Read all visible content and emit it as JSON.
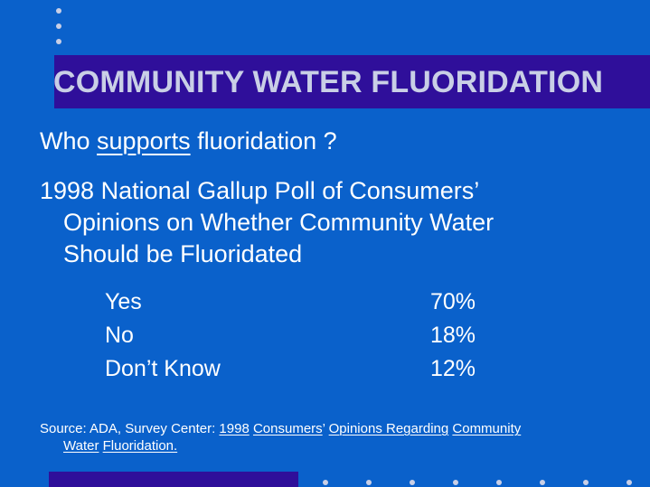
{
  "title": "COMMUNITY WATER FLUORIDATION",
  "question": {
    "prefix": "Who ",
    "emphasis": "supports",
    "suffix": " fluoridation ?"
  },
  "poll": {
    "line1": "1998 National Gallup Poll of Consumers’",
    "line2": "Opinions on Whether Community Water",
    "line3": "Should be Fluoridated"
  },
  "results": [
    {
      "label": "Yes",
      "value": "70%"
    },
    {
      "label": "No",
      "value": "18%"
    },
    {
      "label": "Don’t Know",
      "value": "12%"
    }
  ],
  "source": {
    "prefix": "Source:  ADA, Survey Center: ",
    "year": "1998",
    "consumers": "Consumers",
    "apostrophe": "’ ",
    "opinions": "Opinions Regarding",
    "community": "Community",
    "water": "Water",
    "fluoridation": "Fluoridation."
  },
  "colors": {
    "background": "#0a61cb",
    "title_bar": "#2f0f9a",
    "title_text": "#c9cfe6",
    "text": "#ffffff",
    "dots": "#c9cfe6"
  }
}
